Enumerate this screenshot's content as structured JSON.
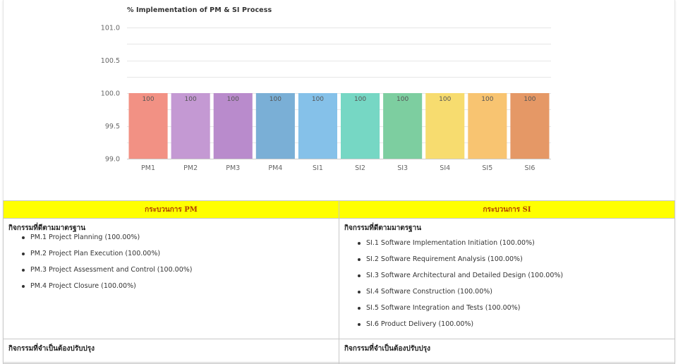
{
  "chart_data": {
    "type": "bar",
    "title": "% Implementation of PM & SI Process",
    "categories": [
      "PM1",
      "PM2",
      "PM3",
      "PM4",
      "SI1",
      "SI2",
      "SI3",
      "SI4",
      "SI5",
      "SI6"
    ],
    "values": [
      100,
      100,
      100,
      100,
      100,
      100,
      100,
      100,
      100,
      100
    ],
    "data_labels": [
      "100",
      "100",
      "100",
      "100",
      "100",
      "100",
      "100",
      "100",
      "100",
      "100"
    ],
    "colors": [
      "#f29184",
      "#c499d3",
      "#b98bcc",
      "#7aafd6",
      "#85c1e9",
      "#76d7c4",
      "#7dcea0",
      "#f7dc6f",
      "#f8c471",
      "#e59866"
    ],
    "ylim": [
      99.0,
      101.0
    ],
    "yticks": [
      "99.0",
      "99.5",
      "100.0",
      "100.5",
      "101.0"
    ],
    "xlabel": "",
    "ylabel": "",
    "grid": true,
    "legend": "none"
  },
  "table": {
    "pm": {
      "header": "กระบวนการ PM",
      "section_label": "กิจกรรมที่ดีตามมาตรฐาน",
      "items": [
        "PM.1 Project Planning (100.00%)",
        "PM.2 Project Plan Execution (100.00%)",
        "PM.3 Project Assessment and Control (100.00%)",
        "PM.4 Project Closure (100.00%)"
      ],
      "improve_label": "กิจกรรมที่จำเป็นต้องปรับปรุง"
    },
    "si": {
      "header": "กระบวนการ SI",
      "section_label": "กิจกรรมที่ดีตามมาตรฐาน",
      "items": [
        "SI.1 Software Implementation Initiation (100.00%)",
        "SI.2 Software Requirement Analysis (100.00%)",
        "SI.3 Software Architectural and Detailed Design (100.00%)",
        "SI.4 Software Construction (100.00%)",
        "SI.5 Software Integration and Tests (100.00%)",
        "SI.6 Product Delivery (100.00%)"
      ],
      "improve_label": "กิจกรรมที่จำเป็นต้องปรับปรุง"
    }
  }
}
